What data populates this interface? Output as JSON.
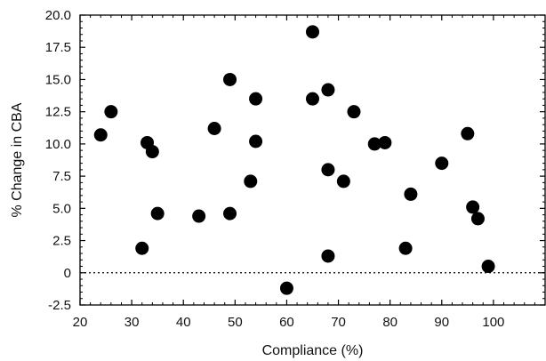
{
  "chart_data": {
    "type": "scatter",
    "title": "",
    "xlabel": "Compliance (%)",
    "ylabel": "% Change in CBA",
    "xlim": [
      20,
      110
    ],
    "ylim": [
      -2.5,
      20
    ],
    "x_ticks": [
      20,
      30,
      40,
      50,
      60,
      70,
      80,
      90,
      100
    ],
    "x_tick_labels": [
      "20",
      "30",
      "40",
      "50",
      "60",
      "70",
      "80",
      "90",
      "100"
    ],
    "y_ticks": [
      -2.5,
      0,
      2.5,
      5,
      7.5,
      10,
      12.5,
      15,
      17.5,
      20
    ],
    "y_tick_labels": [
      "-2.5",
      "0",
      "2.5",
      "5.0",
      "7.5",
      "10.0",
      "12.5",
      "15.0",
      "17.5",
      "20.0"
    ],
    "reference_line": {
      "y": 0,
      "style": "dotted"
    },
    "grid": false,
    "marker_color": "#000000",
    "points": [
      {
        "x": 24,
        "y": 10.7
      },
      {
        "x": 26,
        "y": 12.5
      },
      {
        "x": 32,
        "y": 1.9
      },
      {
        "x": 33,
        "y": 10.1
      },
      {
        "x": 34,
        "y": 9.4
      },
      {
        "x": 35,
        "y": 4.6
      },
      {
        "x": 43,
        "y": 4.4
      },
      {
        "x": 46,
        "y": 11.2
      },
      {
        "x": 49,
        "y": 15.0
      },
      {
        "x": 49,
        "y": 4.6
      },
      {
        "x": 53,
        "y": 7.1
      },
      {
        "x": 54,
        "y": 13.5
      },
      {
        "x": 54,
        "y": 10.2
      },
      {
        "x": 60,
        "y": -1.2
      },
      {
        "x": 65,
        "y": 18.7
      },
      {
        "x": 65,
        "y": 13.5
      },
      {
        "x": 68,
        "y": 14.2
      },
      {
        "x": 68,
        "y": 8.0
      },
      {
        "x": 68,
        "y": 1.3
      },
      {
        "x": 71,
        "y": 7.1
      },
      {
        "x": 73,
        "y": 12.5
      },
      {
        "x": 77,
        "y": 10.0
      },
      {
        "x": 79,
        "y": 10.1
      },
      {
        "x": 83,
        "y": 1.9
      },
      {
        "x": 84,
        "y": 6.1
      },
      {
        "x": 90,
        "y": 8.5
      },
      {
        "x": 95,
        "y": 10.8
      },
      {
        "x": 96,
        "y": 5.1
      },
      {
        "x": 97,
        "y": 4.2
      },
      {
        "x": 99,
        "y": 0.5
      }
    ]
  }
}
